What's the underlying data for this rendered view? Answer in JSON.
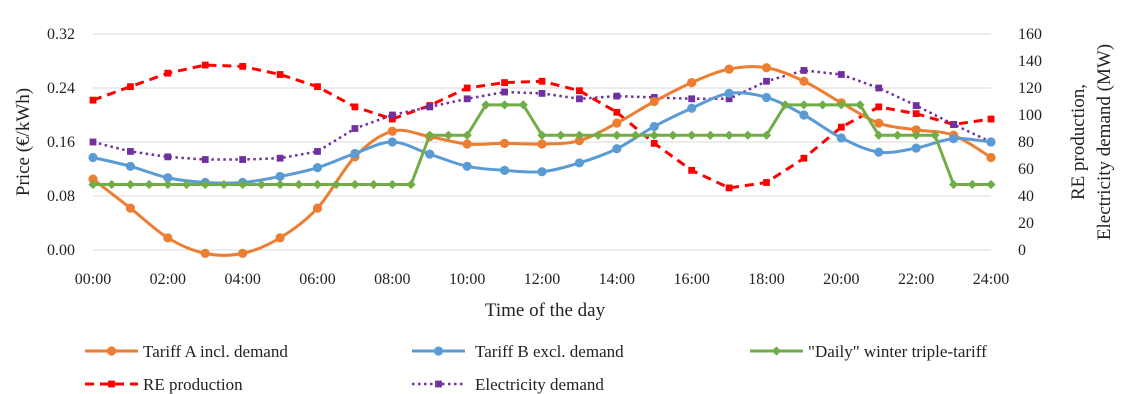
{
  "chart_data": {
    "type": "line",
    "xlabel": "Time of the day",
    "ylabel_left": "Price (€/kWh)",
    "ylabel_right": [
      "RE production,",
      "Electricity demand (MW)"
    ],
    "x_ticks": [
      "00:00",
      "02:00",
      "04:00",
      "06:00",
      "08:00",
      "10:00",
      "12:00",
      "14:00",
      "16:00",
      "18:00",
      "20:00",
      "22:00",
      "24:00"
    ],
    "y_left_ticks": [
      "0.00",
      "0.08",
      "0.16",
      "0.24",
      "0.32"
    ],
    "y_right_ticks": [
      "0",
      "20",
      "40",
      "60",
      "80",
      "100",
      "120",
      "140",
      "160"
    ],
    "ylim_left": [
      0,
      0.32
    ],
    "ylim_right": [
      0,
      160
    ],
    "grid": true,
    "legend_position": "bottom",
    "x": [
      "00:00",
      "01:00",
      "02:00",
      "03:00",
      "04:00",
      "05:00",
      "06:00",
      "07:00",
      "08:00",
      "09:00",
      "10:00",
      "11:00",
      "12:00",
      "13:00",
      "14:00",
      "15:00",
      "16:00",
      "17:00",
      "18:00",
      "19:00",
      "20:00",
      "21:00",
      "22:00",
      "23:00",
      "24:00"
    ],
    "series": [
      {
        "name": "Tariff A incl. demand",
        "axis": "left",
        "color": "#ED7D31",
        "style": "solid",
        "marker": "circle",
        "points": [
          [
            0,
            0.105
          ],
          [
            1,
            0.062
          ],
          [
            2,
            0.018
          ],
          [
            3,
            -0.005
          ],
          [
            4,
            -0.005
          ],
          [
            5,
            0.018
          ],
          [
            6,
            0.062
          ],
          [
            7,
            0.138
          ],
          [
            8,
            0.176
          ],
          [
            9,
            0.168
          ],
          [
            10,
            0.157
          ],
          [
            11,
            0.158
          ],
          [
            12,
            0.157
          ],
          [
            13,
            0.162
          ],
          [
            14,
            0.188
          ],
          [
            15,
            0.22
          ],
          [
            16,
            0.248
          ],
          [
            17,
            0.268
          ],
          [
            18,
            0.27
          ],
          [
            19,
            0.25
          ],
          [
            20,
            0.218
          ],
          [
            21,
            0.188
          ],
          [
            22,
            0.178
          ],
          [
            23,
            0.17
          ],
          [
            24,
            0.137
          ]
        ]
      },
      {
        "name": "Tariff B excl. demand",
        "axis": "left",
        "color": "#5B9BD5",
        "style": "solid",
        "marker": "circle",
        "points": [
          [
            0,
            0.137
          ],
          [
            1,
            0.124
          ],
          [
            2,
            0.107
          ],
          [
            3,
            0.1
          ],
          [
            4,
            0.1
          ],
          [
            5,
            0.109
          ],
          [
            6,
            0.122
          ],
          [
            7,
            0.143
          ],
          [
            8,
            0.16
          ],
          [
            9,
            0.142
          ],
          [
            10,
            0.124
          ],
          [
            11,
            0.118
          ],
          [
            12,
            0.116
          ],
          [
            13,
            0.129
          ],
          [
            14,
            0.15
          ],
          [
            15,
            0.183
          ],
          [
            16,
            0.21
          ],
          [
            17,
            0.232
          ],
          [
            18,
            0.226
          ],
          [
            19,
            0.2
          ],
          [
            20,
            0.166
          ],
          [
            21,
            0.145
          ],
          [
            22,
            0.151
          ],
          [
            23,
            0.165
          ],
          [
            24,
            0.16
          ]
        ]
      },
      {
        "name": "\"Daily\" winter triple-tariff",
        "axis": "left",
        "color": "#70AD47",
        "style": "solid",
        "marker": "diamond",
        "points": [
          [
            0,
            0.097
          ],
          [
            0.5,
            0.097
          ],
          [
            1,
            0.097
          ],
          [
            1.5,
            0.097
          ],
          [
            2,
            0.097
          ],
          [
            2.5,
            0.097
          ],
          [
            3,
            0.097
          ],
          [
            3.5,
            0.097
          ],
          [
            4,
            0.097
          ],
          [
            4.5,
            0.097
          ],
          [
            5,
            0.097
          ],
          [
            5.5,
            0.097
          ],
          [
            6,
            0.097
          ],
          [
            6.5,
            0.097
          ],
          [
            7,
            0.097
          ],
          [
            7.5,
            0.097
          ],
          [
            8,
            0.097
          ],
          [
            8.5,
            0.097
          ],
          [
            9,
            0.17
          ],
          [
            9.5,
            0.17
          ],
          [
            10,
            0.17
          ],
          [
            10.5,
            0.215
          ],
          [
            11,
            0.215
          ],
          [
            11.5,
            0.215
          ],
          [
            12,
            0.17
          ],
          [
            12.5,
            0.17
          ],
          [
            13,
            0.17
          ],
          [
            13.5,
            0.17
          ],
          [
            14,
            0.17
          ],
          [
            14.5,
            0.17
          ],
          [
            15,
            0.17
          ],
          [
            15.5,
            0.17
          ],
          [
            16,
            0.17
          ],
          [
            16.5,
            0.17
          ],
          [
            17,
            0.17
          ],
          [
            17.5,
            0.17
          ],
          [
            18,
            0.17
          ],
          [
            18.5,
            0.215
          ],
          [
            19,
            0.215
          ],
          [
            19.5,
            0.215
          ],
          [
            20,
            0.215
          ],
          [
            20.5,
            0.215
          ],
          [
            21,
            0.17
          ],
          [
            21.5,
            0.17
          ],
          [
            22,
            0.17
          ],
          [
            22.5,
            0.17
          ],
          [
            23,
            0.097
          ],
          [
            23.5,
            0.097
          ],
          [
            24,
            0.097
          ]
        ]
      },
      {
        "name": "RE production",
        "axis": "right",
        "color": "#FF0000",
        "style": "dashed",
        "marker": "square",
        "points": [
          [
            0,
            111
          ],
          [
            1,
            121
          ],
          [
            2,
            131
          ],
          [
            3,
            137
          ],
          [
            4,
            136
          ],
          [
            5,
            130
          ],
          [
            6,
            121
          ],
          [
            7,
            106
          ],
          [
            8,
            97
          ],
          [
            9,
            107
          ],
          [
            10,
            120
          ],
          [
            11,
            124
          ],
          [
            12,
            125
          ],
          [
            13,
            118
          ],
          [
            14,
            102
          ],
          [
            15,
            79
          ],
          [
            16,
            59
          ],
          [
            17,
            46
          ],
          [
            18,
            50
          ],
          [
            19,
            68
          ],
          [
            20,
            91
          ],
          [
            21,
            106
          ],
          [
            22,
            101
          ],
          [
            23,
            93
          ],
          [
            24,
            97
          ]
        ]
      },
      {
        "name": "Electricity demand",
        "axis": "right",
        "color": "#7030A0",
        "style": "dotted",
        "marker": "square",
        "points": [
          [
            0,
            80
          ],
          [
            1,
            73
          ],
          [
            2,
            69
          ],
          [
            3,
            67
          ],
          [
            4,
            67
          ],
          [
            5,
            68
          ],
          [
            6,
            73
          ],
          [
            7,
            90
          ],
          [
            8,
            100
          ],
          [
            9,
            106
          ],
          [
            10,
            112
          ],
          [
            11,
            117
          ],
          [
            12,
            116
          ],
          [
            13,
            112
          ],
          [
            14,
            114
          ],
          [
            15,
            113
          ],
          [
            16,
            112
          ],
          [
            17,
            112
          ],
          [
            18,
            125
          ],
          [
            19,
            133
          ],
          [
            20,
            130
          ],
          [
            21,
            120
          ],
          [
            22,
            107
          ],
          [
            23,
            93
          ],
          [
            24,
            80
          ]
        ]
      }
    ]
  }
}
